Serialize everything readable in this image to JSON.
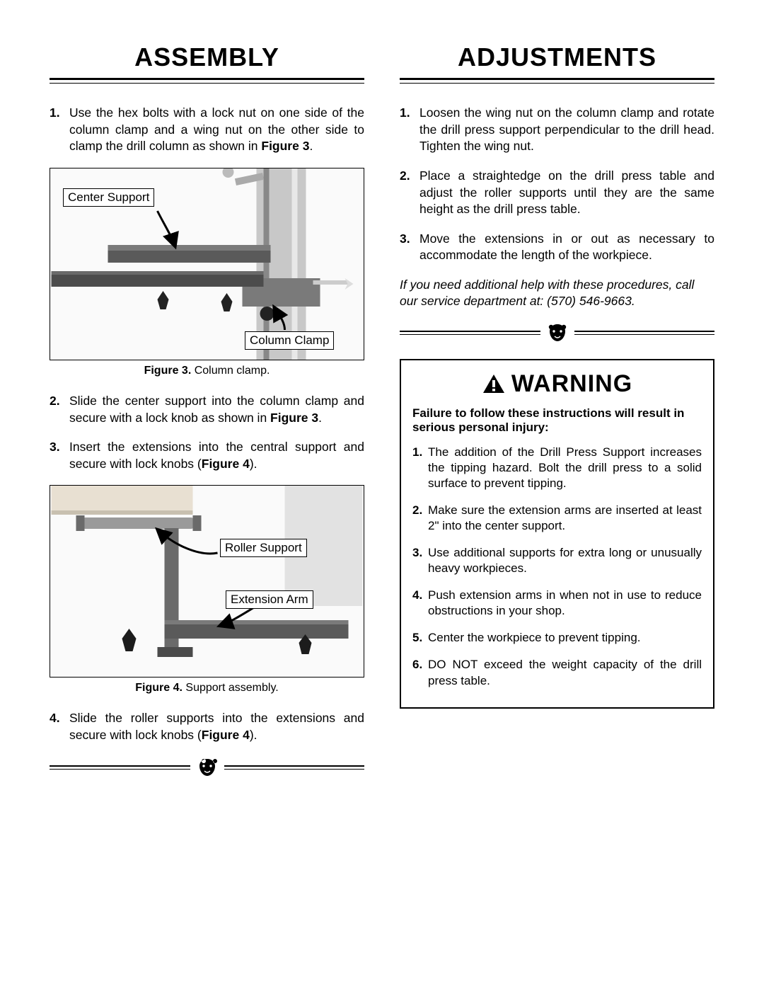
{
  "left": {
    "heading": "ASSEMBLY",
    "steps_before_fig3": [
      {
        "num": "1.",
        "html": "Use the hex bolts with a lock nut on one side of the column clamp and a wing nut on the other side to clamp the drill column as shown in <b>Figure 3</b>."
      }
    ],
    "fig3": {
      "labels": {
        "center_support": "Center Support",
        "column_clamp": "Column Clamp"
      },
      "caption_bold": "Figure 3.",
      "caption_rest": " Column clamp."
    },
    "steps_after_fig3": [
      {
        "num": "2.",
        "html": "Slide the center support into the column clamp and secure with a lock knob as shown in <b>Figure 3</b>."
      },
      {
        "num": "3.",
        "html": "Insert the extensions into the central support and secure with lock knobs (<b>Figure 4</b>)."
      }
    ],
    "fig4": {
      "labels": {
        "roller_support": "Roller Support",
        "extension_arm": "Extension Arm"
      },
      "caption_bold": "Figure 4.",
      "caption_rest": " Support assembly."
    },
    "steps_after_fig4": [
      {
        "num": "4.",
        "html": "Slide the roller supports into the extensions and secure with lock knobs (<b>Figure 4</b>)."
      }
    ]
  },
  "right": {
    "heading": "ADJUSTMENTS",
    "steps": [
      {
        "num": "1.",
        "html": "Loosen the wing nut on the column clamp and rotate the drill press support perpendicular to the drill head. Tighten the wing nut."
      },
      {
        "num": "2.",
        "html": "Place a straightedge on the drill press table and adjust the roller supports until they are the same height as the drill press table."
      },
      {
        "num": "3.",
        "html": "Move the extensions in or out as necessary to accommodate the length of the workpiece."
      }
    ],
    "help_note": "If you need additional help with these procedures, call our service department at: (570) 546-9663.",
    "warning": {
      "title": "WARNING",
      "lead": "Failure to follow these instructions will result in serious personal injury:",
      "items": [
        {
          "num": "1.",
          "html": "The addition of the Drill Press Support increases the tipping hazard. Bolt the drill press to a solid surface to prevent tipping."
        },
        {
          "num": "2.",
          "html": "Make sure the extension arms are inserted at least 2\" into the center support."
        },
        {
          "num": "3.",
          "html": "Use additional supports for extra long or unusually heavy workpieces."
        },
        {
          "num": "4.",
          "html": "Push extension arms in when not in use to reduce obstructions in your shop."
        },
        {
          "num": "5.",
          "html": "Center the workpiece to prevent tipping."
        },
        {
          "num": "6.",
          "html": "DO NOT exceed the weight capacity of the drill press table."
        }
      ]
    }
  },
  "colors": {
    "text": "#000000",
    "bg": "#ffffff",
    "metal_light": "#bdbdbd",
    "metal_mid": "#8a8a8a",
    "metal_dark": "#5a5a5a",
    "knob": "#2a2a2a"
  }
}
